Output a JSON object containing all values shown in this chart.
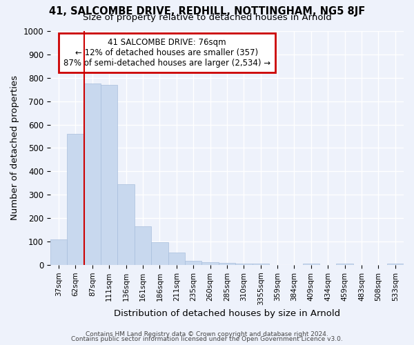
{
  "title1": "41, SALCOMBE DRIVE, REDHILL, NOTTINGHAM, NG5 8JF",
  "title2": "Size of property relative to detached houses in Arnold",
  "xlabel": "Distribution of detached houses by size in Arnold",
  "ylabel": "Number of detached properties",
  "bar_color": "#c8d8ee",
  "bar_edgecolor": "#a8bedd",
  "vline_color": "#cc0000",
  "categories": [
    "37sqm",
    "62sqm",
    "87sqm",
    "111sqm",
    "136sqm",
    "161sqm",
    "186sqm",
    "211sqm",
    "235sqm",
    "260sqm",
    "285sqm",
    "310sqm",
    "3355sqm",
    "359sqm",
    "384sqm",
    "409sqm",
    "434sqm",
    "459sqm",
    "483sqm",
    "508sqm",
    "533sqm"
  ],
  "values": [
    110,
    560,
    775,
    770,
    345,
    165,
    98,
    52,
    18,
    13,
    10,
    7,
    5,
    0,
    0,
    7,
    0,
    7,
    0,
    0,
    7
  ],
  "ylim": [
    0,
    1000
  ],
  "yticks": [
    0,
    100,
    200,
    300,
    400,
    500,
    600,
    700,
    800,
    900,
    1000
  ],
  "annotation_title": "41 SALCOMBE DRIVE: 76sqm",
  "annotation_line1": "← 12% of detached houses are smaller (357)",
  "annotation_line2": "87% of semi-detached houses are larger (2,534) →",
  "annotation_box_color": "#ffffff",
  "annotation_box_edgecolor": "#cc0000",
  "footer1": "Contains HM Land Registry data © Crown copyright and database right 2024.",
  "footer2": "Contains public sector information licensed under the Open Government Licence v3.0.",
  "background_color": "#eef2fb",
  "grid_color": "#ffffff"
}
